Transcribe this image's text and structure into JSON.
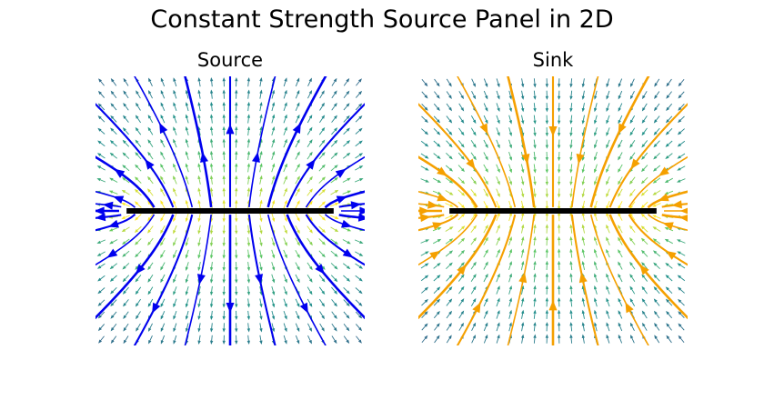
{
  "figure": {
    "title": "Constant Strength Source Panel in 2D"
  },
  "panels": [
    {
      "title": "Source",
      "kind": "source",
      "stream_color": "#0000ee"
    },
    {
      "title": "Sink",
      "kind": "sink",
      "stream_color": "#f5a000"
    }
  ],
  "panel_segment": {
    "x": [
      -0.5,
      0.5
    ],
    "y": 0,
    "color": "#000000"
  },
  "field_domain": {
    "x": [
      -0.65,
      0.65
    ],
    "y": [
      -0.65,
      0.65
    ]
  },
  "colormap": [
    "#440154",
    "#3b528b",
    "#21918c",
    "#5ec962",
    "#fde725"
  ]
}
